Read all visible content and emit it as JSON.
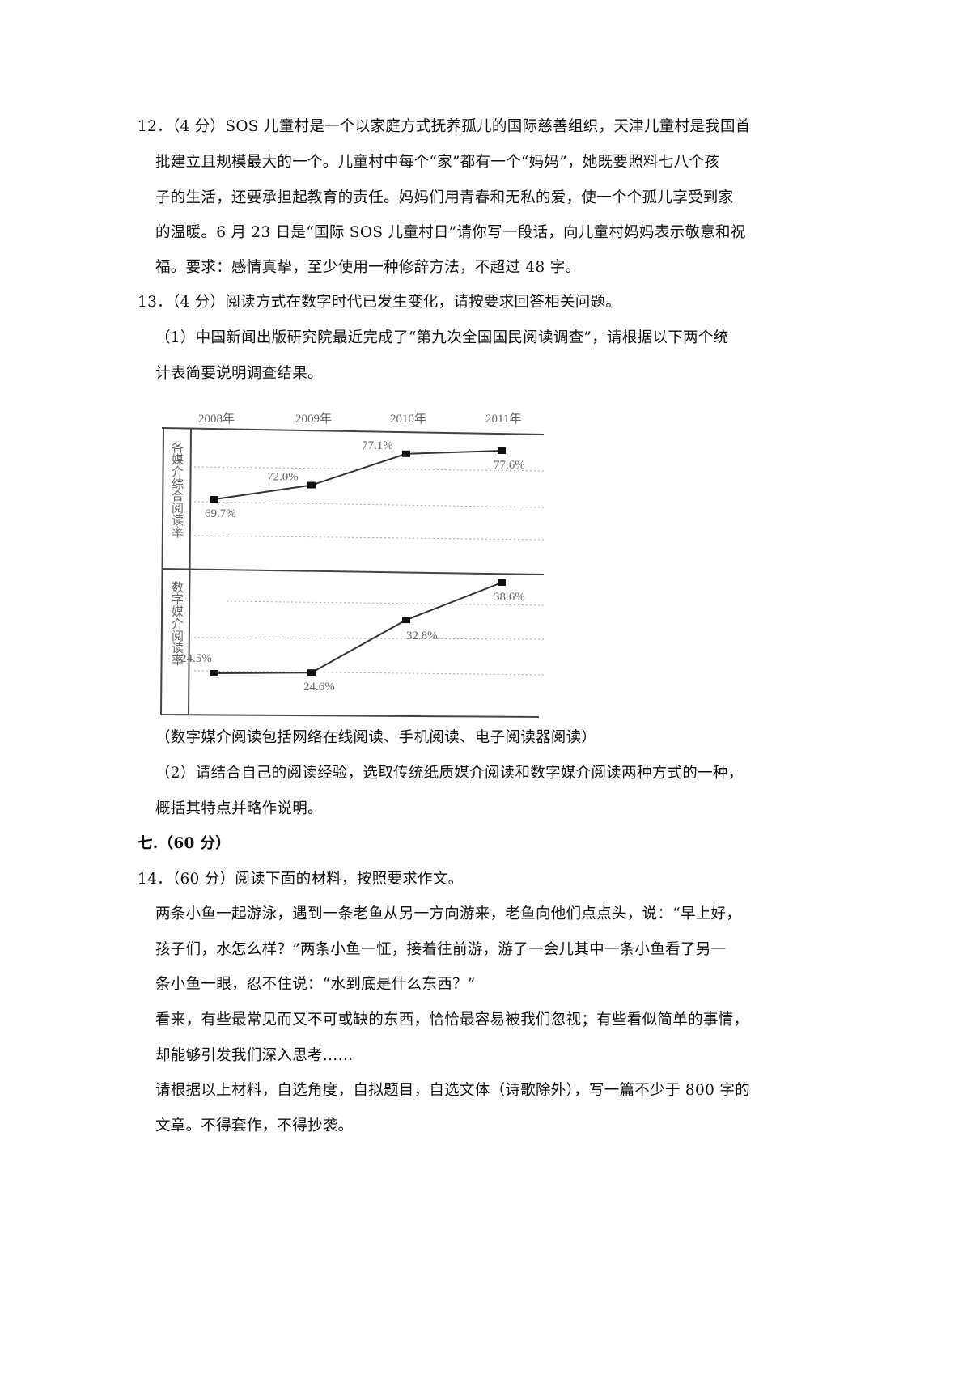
{
  "q12": {
    "lines": [
      "12．（4 分）SOS 儿童村是一个以家庭方式抚养孤儿的国际慈善组织，天津儿童村是我国首",
      "批建立且规模最大的一个。儿童村中每个“家”都有一个“妈妈”，她既要照料七八个孩",
      "子的生活，还要承担起教育的责任。妈妈们用青春和无私的爱，使一个个孤儿享受到家",
      "的温暖。6 月 23 日是“国际 SOS 儿童村日”请你写一段话，向儿童村妈妈表示敬意和祝",
      "福。要求：感情真挚，至少使用一种修辞方法，不超过 48 字。"
    ]
  },
  "q13": {
    "title": "13．（4 分）阅读方式在数字时代已发生变化，请按要求回答相关问题。",
    "part1": [
      "（1）中国新闻出版研究院最近完成了“第九次全国国民阅读调查”，请根据以下两个统",
      "计表简要说明调查结果。"
    ],
    "caption": "（数字媒介阅读包括网络在线阅读、手机阅读、电子阅读器阅读）",
    "part2": [
      "（2）请结合自己的阅读经验，选取传统纸质媒介阅读和数字媒介阅读两种方式的一种，",
      "概括其特点并略作说明。"
    ]
  },
  "section7": "七.（60 分）",
  "q14": {
    "title": "14．（60 分）阅读下面的材料，按照要求作文。",
    "lines": [
      "两条小鱼一起游泳，遇到一条老鱼从另一方向游来，老鱼向他们点点头，说：“早上好，",
      "孩子们，水怎么样？”两条小鱼一怔，接着往前游，游了一会儿其中一条小鱼看了另一",
      "条小鱼一眼，忍不住说：“水到底是什么东西？”",
      "看来，有些最常见而又不可或缺的东西，恰恰最容易被我们忽视；有些看似简单的事情，",
      "却能够引发我们深入思考……",
      "请根据以上材料，自选角度，自拟题目，自选文体（诗歌除外），写一篇不少于 800 字的",
      "文章。不得套作，不得抄袭。"
    ]
  },
  "chart_data": {
    "type": "line",
    "categories": [
      "2008年",
      "2009年",
      "2010年",
      "2011年"
    ],
    "series": [
      {
        "name": "各媒介综合阅读率",
        "values": [
          69.7,
          72.0,
          77.1,
          77.6
        ],
        "labels": [
          "69.7%",
          "72.0%",
          "77.1%",
          "77.6%"
        ]
      },
      {
        "name": "数字媒介阅读率",
        "values": [
          24.5,
          24.6,
          32.8,
          38.6
        ],
        "labels": [
          "24.5%",
          "24.6%",
          "32.8%",
          "38.6%"
        ]
      }
    ],
    "grid": "dotted horizontal"
  }
}
